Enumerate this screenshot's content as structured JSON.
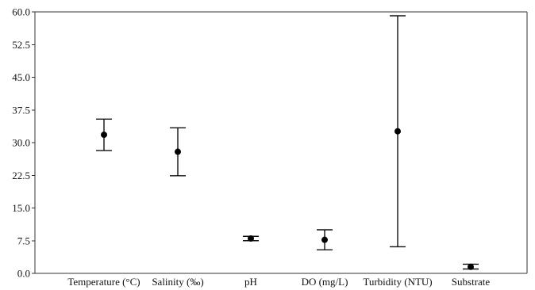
{
  "chart_data": {
    "type": "errorbar",
    "title": "",
    "xlabel": "",
    "ylabel": "",
    "ylim": [
      0,
      60
    ],
    "yticks": [
      "0.0",
      "7.5",
      "15.0",
      "22.5",
      "30.0",
      "37.5",
      "45.0",
      "52.5",
      "60.0"
    ],
    "ytick_values": [
      0,
      7.5,
      15,
      22.5,
      30,
      37.5,
      45,
      52.5,
      60
    ],
    "categories": [
      "Temperature (°C)",
      "Salinity (‰)",
      "pH",
      "DO (mg/L)",
      "Turbidity (NTU)",
      "Substrate"
    ],
    "series": [
      {
        "mean": [
          31.8,
          27.9,
          8.0,
          7.7,
          32.6,
          1.5
        ],
        "lower": [
          28.2,
          22.4,
          7.5,
          5.4,
          6.1,
          1.0
        ],
        "upper": [
          35.4,
          33.4,
          8.5,
          10.0,
          59.1,
          2.1
        ]
      }
    ],
    "grid": false,
    "legend": "none"
  }
}
